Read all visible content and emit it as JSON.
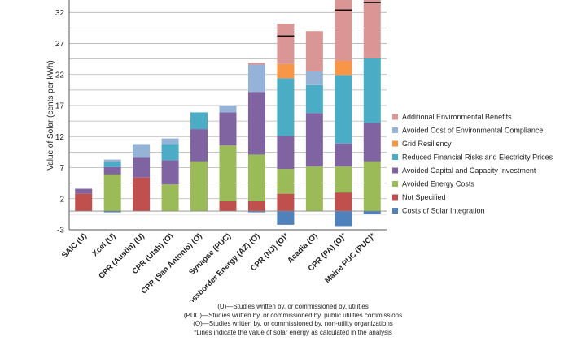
{
  "chart_data": {
    "type": "bar",
    "stacked": true,
    "ylabel": "Value of Solar (cents per kWh)",
    "ylim": [
      -3,
      34
    ],
    "yticks": [
      -3,
      2,
      7,
      12,
      17,
      22,
      27,
      32
    ],
    "grid": true,
    "legend_position": "right",
    "categories": [
      "SAIC (U)",
      "Xcel (U)",
      "CPR (Austin) (U)",
      "CPR (Utah) (O)",
      "CPR (San Antonio) (O)",
      "Synapse (PUC)",
      "Crossborder Energy (AZ) (O)",
      "CPR (NJ) (O)*",
      "Acadia (O)",
      "CPR (PA) (O)*",
      "Maine PUC (PUC)*"
    ],
    "series": [
      {
        "name": "Costs of Solar Integration",
        "color": "#4F81BD",
        "values": [
          0,
          -0.2,
          0,
          0,
          0,
          0,
          -0.2,
          -2.2,
          0,
          -2.4,
          -0.5
        ]
      },
      {
        "name": "Not Specified",
        "color": "#C0504D",
        "values": [
          2.8,
          0,
          5.4,
          0,
          0,
          1.6,
          1.6,
          2.8,
          0,
          3.0,
          0
        ]
      },
      {
        "name": "Avoided Energy Costs",
        "color": "#9BBB59",
        "values": [
          0,
          5.9,
          0,
          4.3,
          8.0,
          9.0,
          7.5,
          4.0,
          7.2,
          4.2,
          8.0
        ]
      },
      {
        "name": "Avoided Capital and Capacity Investment",
        "color": "#8064A2",
        "values": [
          0.8,
          1.2,
          3.3,
          3.9,
          5.2,
          5.3,
          10.1,
          5.3,
          8.6,
          3.7,
          6.2
        ]
      },
      {
        "name": "Reduced Financial Risks and Electricity Prices",
        "color": "#4BACC6",
        "values": [
          0,
          0.8,
          0,
          2.6,
          2.7,
          0,
          0,
          9.3,
          4.5,
          11.0,
          10.4
        ]
      },
      {
        "name": "Grid Resiliency",
        "color": "#F79646",
        "values": [
          0,
          0,
          0,
          0,
          0,
          0,
          0,
          2.3,
          0,
          2.3,
          0
        ]
      },
      {
        "name": "Avoided Cost of Environmental Compliance",
        "color": "#95B3D7",
        "values": [
          0,
          0.4,
          2.1,
          0.9,
          0,
          1.1,
          4.4,
          0,
          2.2,
          0,
          0
        ]
      },
      {
        "name": "Additional Environmental Benefits",
        "color": "#D99694",
        "values": [
          0,
          0,
          0,
          0,
          0,
          0,
          0.3,
          6.5,
          6.5,
          11.8,
          9.8
        ]
      }
    ],
    "markers": [
      {
        "category": "CPR (NJ) (O)*",
        "value": 28.2
      },
      {
        "category": "CPR (PA) (O)*",
        "value": 32.4
      },
      {
        "category": "Maine PUC (PUC)*",
        "value": 33.6
      }
    ]
  },
  "notes": {
    "line1": "(U)—Studies written by, or commissioned by, utilities",
    "line2": "(PUC)—Studies written by, or commissioned by, public utilities commissions",
    "line3": "(O)—Studies written by, or commissioned by, non-utility organizations",
    "line4": "*Lines indicate the value of solar energy as calculated in the analysis"
  }
}
